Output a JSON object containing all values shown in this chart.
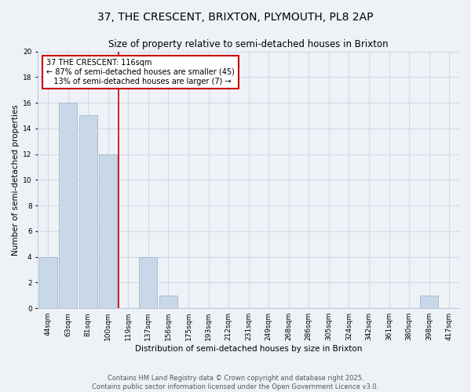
{
  "title": "37, THE CRESCENT, BRIXTON, PLYMOUTH, PL8 2AP",
  "subtitle": "Size of property relative to semi-detached houses in Brixton",
  "xlabel": "Distribution of semi-detached houses by size in Brixton",
  "ylabel": "Number of semi-detached properties",
  "bin_labels": [
    "44sqm",
    "63sqm",
    "81sqm",
    "100sqm",
    "119sqm",
    "137sqm",
    "156sqm",
    "175sqm",
    "193sqm",
    "212sqm",
    "231sqm",
    "249sqm",
    "268sqm",
    "286sqm",
    "305sqm",
    "324sqm",
    "342sqm",
    "361sqm",
    "380sqm",
    "398sqm",
    "417sqm"
  ],
  "bar_values": [
    4,
    16,
    15,
    12,
    0,
    4,
    1,
    0,
    0,
    0,
    0,
    0,
    0,
    0,
    0,
    0,
    0,
    0,
    0,
    1,
    0
  ],
  "bar_color": "#c8d8e8",
  "bar_edgecolor": "#a0b8cc",
  "marker_line_color": "#cc0000",
  "annotation_text": "37 THE CRESCENT: 116sqm\n← 87% of semi-detached houses are smaller (45)\n   13% of semi-detached houses are larger (7) →",
  "annotation_box_edgecolor": "#cc0000",
  "annotation_box_facecolor": "#ffffff",
  "ylim": [
    0,
    20
  ],
  "yticks": [
    0,
    2,
    4,
    6,
    8,
    10,
    12,
    14,
    16,
    18,
    20
  ],
  "background_color": "#eef2f7",
  "grid_color": "#d0dae8",
  "footer_line1": "Contains HM Land Registry data © Crown copyright and database right 2025.",
  "footer_line2": "Contains public sector information licensed under the Open Government Licence v3.0.",
  "title_fontsize": 10,
  "subtitle_fontsize": 8.5,
  "axis_label_fontsize": 7.5,
  "tick_fontsize": 6.5,
  "annotation_fontsize": 7,
  "footer_fontsize": 6
}
